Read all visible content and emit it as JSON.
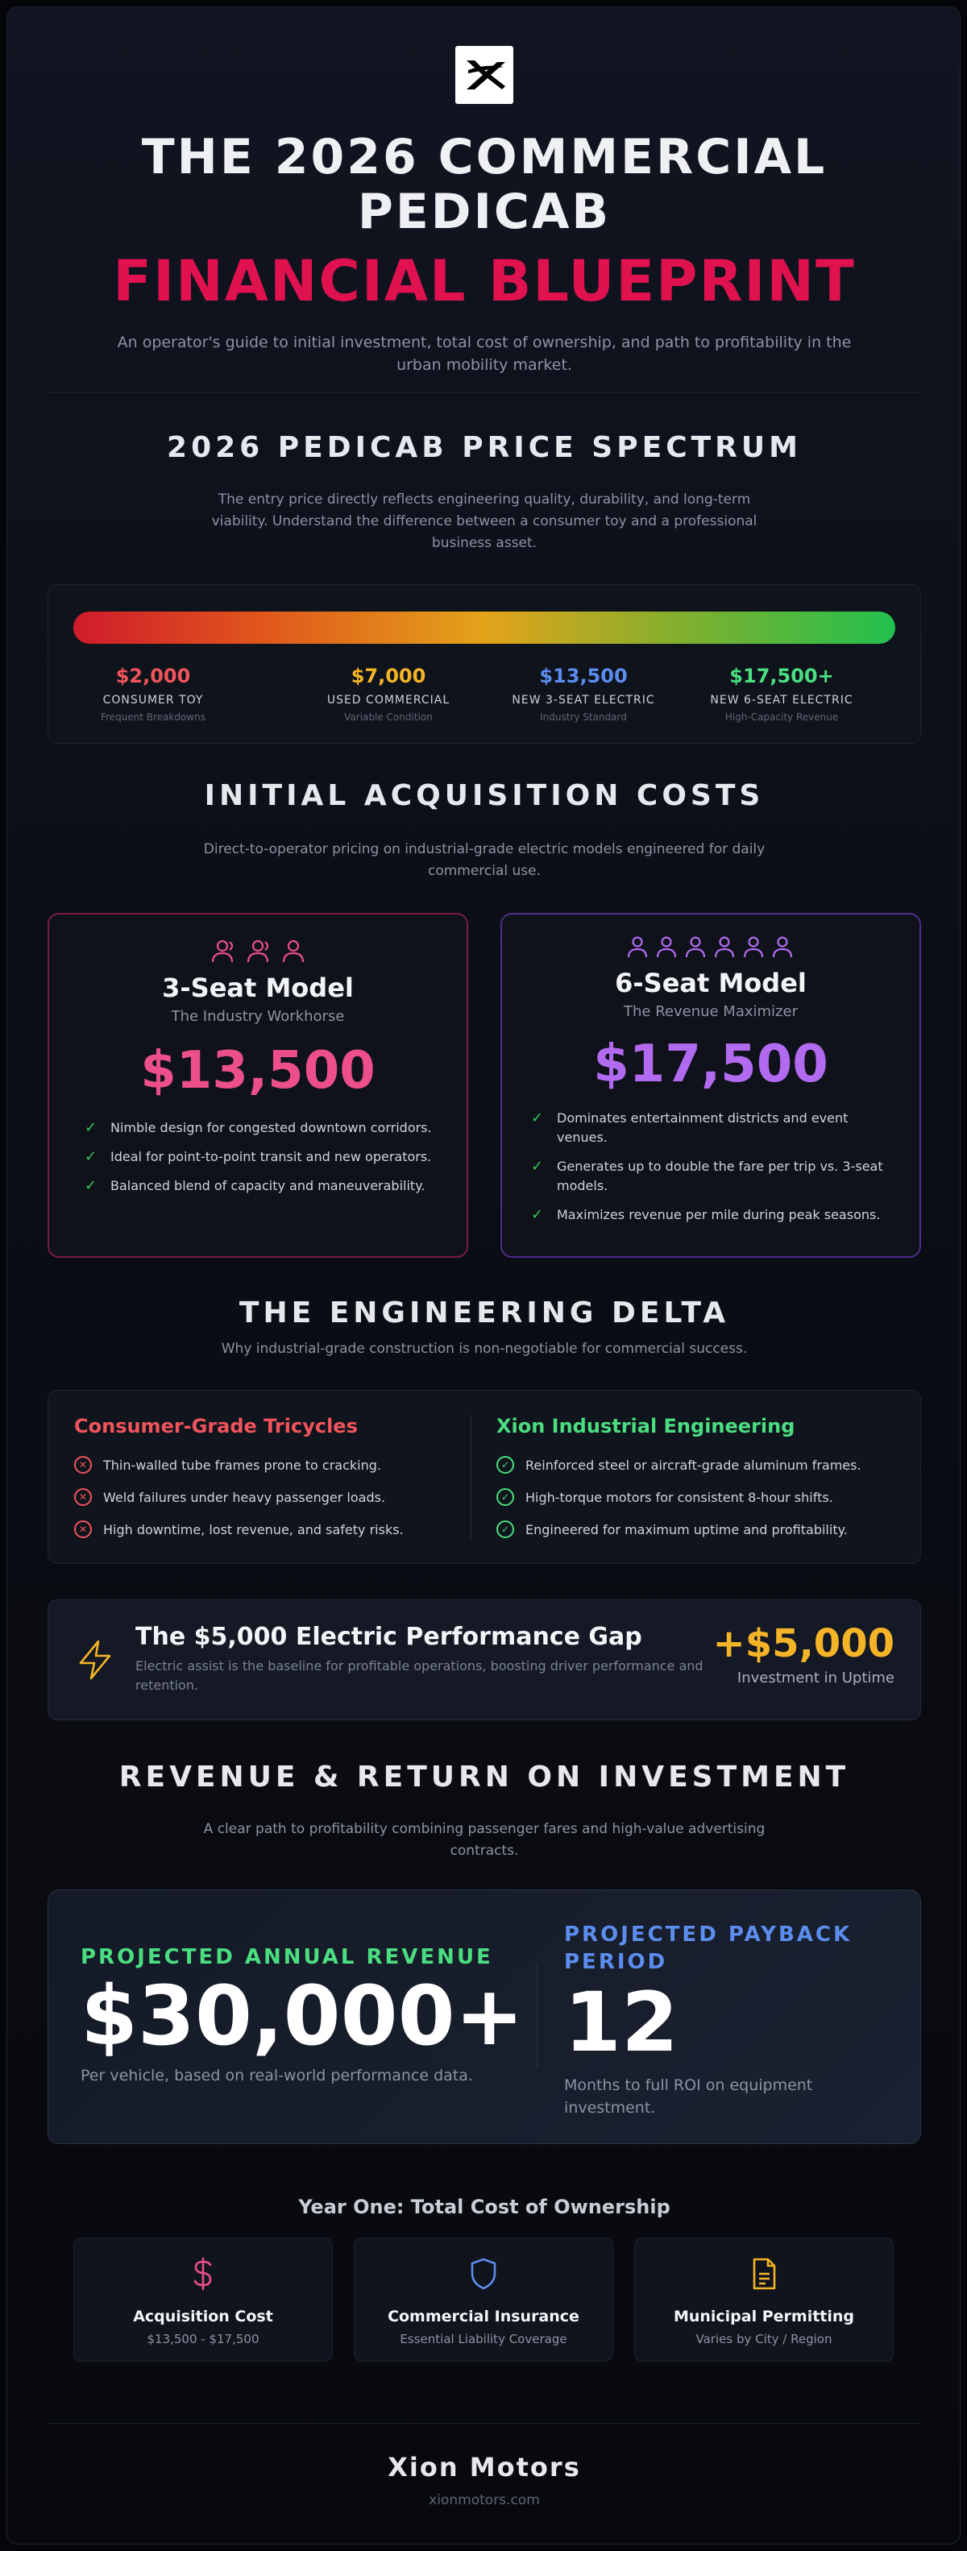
{
  "brand": {
    "logo_icon": "xion-x-logo-icon",
    "name": "Xion Motors",
    "url": "xionmotors.com"
  },
  "hero": {
    "title": "THE 2026 COMMERCIAL PEDICAB",
    "subtitle": "FINANCIAL BLUEPRINT",
    "description": "An operator's guide to initial investment, total cost of ownership, and path to profitability in the urban mobility market."
  },
  "spectrum": {
    "title": "2026 PEDICAB PRICE SPECTRUM",
    "description": "The entry price directly reflects engineering quality, durability, and long-term viability. Understand the difference between a consumer toy and a professional business asset.",
    "points": [
      {
        "price": "$2,000",
        "label": "CONSUMER TOY",
        "note": "Frequent Breakdowns",
        "color": "#f2545b"
      },
      {
        "price": "$7,000",
        "label": "USED COMMERCIAL",
        "note": "Variable Condition",
        "color": "#f5b427"
      },
      {
        "price": "$13,500",
        "label": "NEW 3-SEAT ELECTRIC",
        "note": "Industry Standard",
        "color": "#5b8def"
      },
      {
        "price": "$17,500+",
        "label": "NEW 6-SEAT ELECTRIC",
        "note": "High-Capacity Revenue",
        "color": "#4ade80"
      }
    ]
  },
  "acquisition": {
    "title": "INITIAL ACQUISITION COSTS",
    "description": "Direct-to-operator pricing on industrial-grade electric models engineered for daily commercial use.",
    "models": [
      {
        "name": "3-Seat Model",
        "tagline": "The Industry Workhorse",
        "price": "$13,500",
        "accent": "#ec4f8a",
        "seat_icon": "person-icon",
        "seats": 3,
        "features": [
          "Nimble design for congested downtown corridors.",
          "Ideal for point-to-point transit and new operators.",
          "Balanced blend of capacity and maneuverability."
        ]
      },
      {
        "name": "6-Seat Model",
        "tagline": "The Revenue Maximizer",
        "price": "$17,500",
        "accent": "#b26bf0",
        "seat_icon": "person-icon",
        "seats": 6,
        "features": [
          "Dominates entertainment districts and event venues.",
          "Generates up to double the fare per trip vs. 3-seat models.",
          "Maximizes revenue per mile during peak seasons."
        ]
      }
    ]
  },
  "engineering": {
    "title": "THE ENGINEERING DELTA",
    "description": "Why industrial-grade construction is non-negotiable for commercial success.",
    "consumer": {
      "title": "Consumer-Grade Tricycles",
      "color": "#f2545b",
      "items": [
        "Thin-walled tube frames prone to cracking.",
        "Weld failures under heavy passenger loads.",
        "High downtime, lost revenue, and safety risks."
      ]
    },
    "industrial": {
      "title": "Xion Industrial Engineering",
      "color": "#4ade80",
      "items": [
        "Reinforced steel or aircraft-grade aluminum frames.",
        "High-torque motors for consistent 8-hour shifts.",
        "Engineered for maximum uptime and profitability."
      ]
    }
  },
  "gap": {
    "icon": "lightning-bolt-icon",
    "title": "The $5,000 Electric Performance Gap",
    "description": "Electric assist is the baseline for profitable operations, boosting driver performance and retention.",
    "amount": "+$5,000",
    "amount_label": "Investment in Uptime"
  },
  "revenue": {
    "title": "REVENUE & RETURN ON INVESTMENT",
    "description": "A clear path to profitability combining passenger fares and high-value advertising contracts.",
    "annual_label": "PROJECTED ANNUAL REVENUE",
    "annual_value": "$30,000+",
    "annual_note": "Per vehicle, based on real-world performance data.",
    "payback_label": "PROJECTED PAYBACK PERIOD",
    "payback_value": "12",
    "payback_note": "Months to full ROI on equipment investment."
  },
  "tco": {
    "title": "Year One: Total Cost of Ownership",
    "items": [
      {
        "icon": "dollar-sign-icon",
        "title": "Acquisition Cost",
        "sub": "$13,500 - $17,500",
        "color": "#ec4f8a"
      },
      {
        "icon": "shield-icon",
        "title": "Commercial Insurance",
        "sub": "Essential Liability Coverage",
        "color": "#5b8def"
      },
      {
        "icon": "document-icon",
        "title": "Municipal Permitting",
        "sub": "Varies by City / Region",
        "color": "#f5b427"
      }
    ]
  }
}
